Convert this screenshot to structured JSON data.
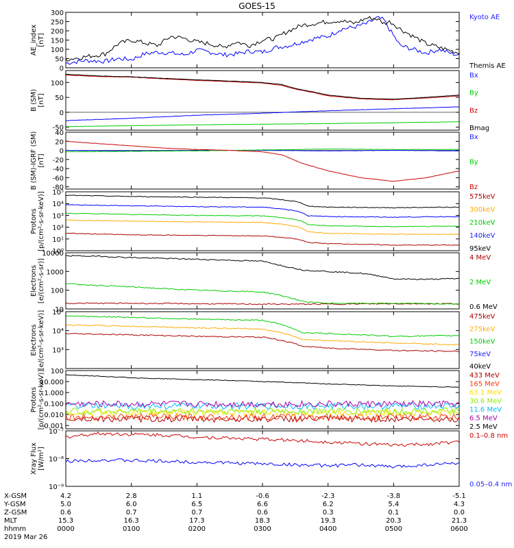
{
  "title": "GOES-15",
  "colors": {
    "black": "#000000",
    "blue": "#0000ff",
    "green": "#00cc00",
    "red": "#cc0000",
    "orange": "#ffaa00",
    "maroon": "#aa0000",
    "cyan": "#00bbff",
    "yellow": "#ffdd00",
    "lime": "#88ee00",
    "purple": "#aa00aa",
    "label_blue": "#2222ff"
  },
  "time_ticks": [
    "0000",
    "0100",
    "0200",
    "0300",
    "0400",
    "0500",
    "0600"
  ],
  "orbit_rows": [
    {
      "label": "X-GSM",
      "values": [
        "4.2",
        "2.8",
        "1.1",
        "-0.6",
        "-2.3",
        "-3.8",
        "-5.1"
      ]
    },
    {
      "label": "Y-GSM",
      "values": [
        "5.0",
        "6.0",
        "6.5",
        "6.6",
        "6.2",
        "5.4",
        "4.3"
      ]
    },
    {
      "label": "Z-GSM",
      "values": [
        "0.6",
        "0.7",
        "0.7",
        "0.6",
        "0.3",
        "0.1",
        "0.0"
      ]
    },
    {
      "label": "MLT",
      "values": [
        "15.3",
        "16.3",
        "17.3",
        "18.3",
        "19.3",
        "20.3",
        "21.3"
      ]
    },
    {
      "label": "hhmm",
      "values": [
        "0000",
        "0100",
        "0200",
        "0300",
        "0400",
        "0500",
        "0600"
      ]
    }
  ],
  "date_label": "2019 Mar 26",
  "chart_data": [
    {
      "type": "line",
      "ylabel": "AE_index\n[nT]",
      "ylim": [
        0,
        300
      ],
      "yticks": [
        0,
        50,
        100,
        150,
        200,
        250,
        300
      ],
      "ytick_labels": [
        "0",
        "50",
        "100",
        "150",
        "200",
        "250",
        "300"
      ],
      "x_hours": [
        0,
        6
      ],
      "series": [
        {
          "name": "Kyoto AE",
          "color": "#0000ff",
          "x": [
            0,
            0.3,
            0.6,
            0.8,
            1.0,
            1.2,
            1.4,
            1.6,
            1.8,
            2.0,
            2.2,
            2.4,
            2.6,
            2.8,
            3.0,
            3.2,
            3.4,
            3.6,
            3.8,
            4.0,
            4.2,
            4.4,
            4.6,
            4.75,
            4.85,
            4.95,
            5.1,
            5.3,
            5.5,
            5.7,
            5.9,
            6.0
          ],
          "values": [
            25,
            40,
            35,
            50,
            45,
            75,
            85,
            80,
            70,
            95,
            85,
            70,
            75,
            90,
            85,
            110,
            120,
            140,
            160,
            170,
            210,
            220,
            240,
            270,
            260,
            200,
            120,
            100,
            80,
            100,
            75,
            70
          ]
        },
        {
          "name": "Themis AE",
          "color": "#000000",
          "x": [
            0,
            0.3,
            0.6,
            0.8,
            1.0,
            1.2,
            1.4,
            1.6,
            1.8,
            2.0,
            2.2,
            2.4,
            2.6,
            2.8,
            3.0,
            3.2,
            3.4,
            3.6,
            3.8,
            4.0,
            4.2,
            4.4,
            4.6,
            4.75,
            4.85,
            4.95,
            5.1,
            5.3,
            5.5,
            5.7,
            5.9,
            6.0
          ],
          "values": [
            45,
            60,
            75,
            130,
            150,
            135,
            120,
            170,
            160,
            140,
            130,
            110,
            140,
            120,
            150,
            160,
            200,
            230,
            240,
            250,
            255,
            240,
            270,
            265,
            240,
            250,
            210,
            170,
            130,
            110,
            90,
            80
          ]
        }
      ]
    },
    {
      "type": "line",
      "ylabel": "B (SM)\n[nT]",
      "ylim": [
        -60,
        140
      ],
      "yticks": [
        -50,
        0,
        50,
        100
      ],
      "ytick_labels": [
        "-50",
        "0",
        "50",
        "100"
      ],
      "x_hours": [
        0,
        6
      ],
      "series": [
        {
          "name": "Bx",
          "color": "#0000ff",
          "x": [
            0,
            1,
            2,
            3,
            4,
            5,
            6
          ],
          "values": [
            -28,
            -20,
            -10,
            -3,
            5,
            12,
            18
          ]
        },
        {
          "name": "By",
          "color": "#00cc00",
          "x": [
            0,
            1,
            2,
            3,
            4,
            5,
            6
          ],
          "values": [
            -48,
            -45,
            -42,
            -40,
            -38,
            -35,
            -32
          ]
        },
        {
          "name": "Bz",
          "color": "#cc0000",
          "x": [
            0,
            0.5,
            1,
            1.5,
            2,
            2.5,
            3,
            3.3,
            3.5,
            3.8,
            4,
            4.5,
            5,
            5.5,
            6
          ],
          "values": [
            125,
            120,
            118,
            112,
            107,
            103,
            98,
            90,
            78,
            65,
            55,
            45,
            42,
            48,
            55
          ]
        },
        {
          "name": "Bmag",
          "color": "#000000",
          "x": [
            0,
            0.5,
            1,
            1.5,
            2,
            2.5,
            3,
            3.3,
            3.5,
            3.8,
            4,
            4.5,
            5,
            5.5,
            6
          ],
          "values": [
            128,
            122,
            119,
            114,
            109,
            105,
            100,
            93,
            80,
            67,
            58,
            47,
            44,
            50,
            58
          ]
        }
      ]
    },
    {
      "type": "line",
      "ylabel": "B (SM)-IGRF (SM)\n[nT]",
      "ylim": [
        -85,
        40
      ],
      "yticks": [
        -80,
        -60,
        -40,
        -20,
        0,
        20,
        40
      ],
      "ytick_labels": [
        "-80",
        "-60",
        "-40",
        "-20",
        "0",
        "20",
        "40"
      ],
      "x_hours": [
        0,
        6
      ],
      "series": [
        {
          "name": "Bx",
          "color": "#0000ff",
          "x": [
            0,
            1,
            2,
            3,
            4,
            5,
            6
          ],
          "values": [
            0,
            -1,
            0,
            0,
            -1,
            0,
            -1
          ]
        },
        {
          "name": "By",
          "color": "#00cc00",
          "x": [
            0,
            1,
            2,
            3,
            4,
            5,
            6
          ],
          "values": [
            -3,
            -2,
            -1,
            1,
            3,
            2,
            2
          ]
        },
        {
          "name": "Bz",
          "color": "#cc0000",
          "x": [
            0,
            0.5,
            1,
            1.5,
            2,
            2.5,
            3,
            3.3,
            3.6,
            4,
            4.5,
            5,
            5.5,
            6
          ],
          "values": [
            20,
            15,
            10,
            5,
            2,
            0,
            -3,
            -10,
            -28,
            -45,
            -60,
            -68,
            -60,
            -45
          ]
        }
      ]
    },
    {
      "type": "line",
      "ylabel": "Protons\n[p/(cm²-s-sr-keV)]",
      "yscale": "log",
      "ylim": [
        1,
        100000
      ],
      "yticks": [
        1,
        10,
        100,
        1000,
        10000,
        100000
      ],
      "ytick_labels": [
        "10⁰",
        "10¹",
        "10²",
        "10³",
        "10⁴",
        "10⁵"
      ],
      "x_hours": [
        0,
        6
      ],
      "series": [
        {
          "name": "575keV",
          "color": "#aa0000",
          "x": [
            0,
            1,
            2,
            3,
            3.5,
            3.7,
            4,
            5,
            6
          ],
          "values": [
            30,
            22,
            20,
            18,
            10,
            5,
            4,
            3,
            3
          ]
        },
        {
          "name": "300keV",
          "color": "#ffaa00",
          "x": [
            0,
            1,
            2,
            3,
            3.5,
            3.7,
            4,
            5,
            6
          ],
          "values": [
            400,
            320,
            280,
            250,
            120,
            40,
            30,
            25,
            25
          ]
        },
        {
          "name": "210keV",
          "color": "#00cc00",
          "x": [
            0,
            1,
            2,
            3,
            3.5,
            3.7,
            4,
            5,
            6
          ],
          "values": [
            1500,
            1200,
            1000,
            900,
            450,
            160,
            130,
            110,
            120
          ]
        },
        {
          "name": "140keV",
          "color": "#0000ff",
          "x": [
            0,
            1,
            2,
            3,
            3.5,
            3.7,
            4,
            5,
            6
          ],
          "values": [
            8000,
            6500,
            5500,
            5000,
            2500,
            900,
            800,
            700,
            800
          ]
        },
        {
          "name": "95keV",
          "color": "#000000",
          "x": [
            0,
            1,
            2,
            3,
            3.5,
            3.7,
            4,
            5,
            6
          ],
          "values": [
            50000,
            40000,
            35000,
            30000,
            15000,
            6000,
            5000,
            4500,
            5000
          ]
        }
      ]
    },
    {
      "type": "line",
      "ylabel": "Electrons\n[e/(cm²-s-sr)]",
      "yscale": "log",
      "ylim": [
        10,
        10000
      ],
      "yticks": [
        10,
        100,
        1000,
        10000
      ],
      "ytick_labels": [
        "10",
        "100",
        "1000",
        "10000"
      ],
      "x_hours": [
        0,
        6
      ],
      "series": [
        {
          "name": "4 MeV",
          "color": "#aa0000",
          "x": [
            0,
            1,
            2,
            3,
            4,
            5,
            6
          ],
          "values": [
            20,
            20,
            19,
            18,
            18,
            19,
            19
          ]
        },
        {
          "name": "2 MeV",
          "color": "#00cc00",
          "x": [
            0,
            0.5,
            1,
            1.5,
            2,
            2.5,
            3,
            3.3,
            3.6,
            4,
            5,
            6
          ],
          "values": [
            220,
            180,
            150,
            120,
            100,
            90,
            80,
            50,
            25,
            20,
            20,
            18
          ]
        },
        {
          "name": "0.6 MeV",
          "color": "#000000",
          "x": [
            0,
            0.5,
            1,
            1.5,
            2,
            2.5,
            3,
            3.3,
            3.6,
            4,
            4.5,
            5,
            5.5,
            6
          ],
          "values": [
            7000,
            6500,
            5500,
            5000,
            4500,
            4000,
            3500,
            2000,
            1200,
            1000,
            800,
            400,
            380,
            420
          ]
        }
      ]
    },
    {
      "type": "line",
      "ylabel": "Electrons\n[e/(cm²-s-sr-keV)]",
      "yscale": "log",
      "ylim": [
        100,
        100000
      ],
      "yticks": [
        1000,
        10000,
        100000
      ],
      "ytick_labels": [
        "10³",
        "10⁴",
        "10⁵"
      ],
      "x_hours": [
        0,
        6
      ],
      "series": [
        {
          "name": "475keV",
          "color": "#aa0000",
          "x": [
            0,
            1,
            2,
            3,
            3.4,
            3.6,
            4,
            5,
            6
          ],
          "values": [
            7000,
            6000,
            5000,
            4500,
            2500,
            1500,
            1200,
            900,
            800
          ]
        },
        {
          "name": "275keV",
          "color": "#ffaa00",
          "x": [
            0,
            1,
            2,
            3,
            3.4,
            3.6,
            4,
            5,
            6
          ],
          "values": [
            20000,
            17000,
            14000,
            12000,
            6000,
            3500,
            3000,
            2200,
            1800
          ]
        },
        {
          "name": "150keV",
          "color": "#00cc00",
          "x": [
            0,
            1,
            2,
            3,
            3.4,
            3.6,
            4,
            5,
            6
          ],
          "values": [
            60000,
            50000,
            40000,
            35000,
            15000,
            8000,
            7000,
            5000,
            5500
          ]
        },
        {
          "name": "75keV",
          "color": "#0000ff"
        },
        {
          "name": "40keV",
          "color": "#000000"
        }
      ]
    },
    {
      "type": "line",
      "ylabel": "Protons\n[p/(cm²-s-sr-keV)]",
      "yscale": "log",
      "ylim": [
        0.0005,
        100
      ],
      "yticks": [
        0.001,
        0.01,
        0.1,
        1,
        10,
        100
      ],
      "ytick_labels": [
        "0.001",
        "0.010",
        "0.100",
        "1.000",
        "10.000",
        "100"
      ],
      "x_hours": [
        0,
        6
      ],
      "series": [
        {
          "name": "433 MeV",
          "color": "#aa0000",
          "x": [
            0,
            2,
            4,
            6
          ],
          "values": [
            0.004,
            0.004,
            0.004,
            0.004
          ]
        },
        {
          "name": "165 MeV",
          "color": "#ff3300",
          "x": [
            0,
            2,
            4,
            6
          ],
          "values": [
            0.006,
            0.006,
            0.006,
            0.006
          ]
        },
        {
          "name": "63.1 MeV",
          "color": "#ffdd00",
          "x": [
            0,
            2,
            4,
            6
          ],
          "values": [
            0.015,
            0.015,
            0.015,
            0.015
          ]
        },
        {
          "name": "30.6 MeV",
          "color": "#88ee00",
          "x": [
            0,
            2,
            4,
            6
          ],
          "values": [
            0.02,
            0.02,
            0.02,
            0.02
          ]
        },
        {
          "name": "11.6 MeV",
          "color": "#00bbff",
          "x": [
            0,
            2,
            4,
            6
          ],
          "values": [
            0.06,
            0.06,
            0.06,
            0.06
          ]
        },
        {
          "name": "6.5 MeV",
          "color": "#aa00aa",
          "x": [
            0,
            2,
            4,
            6
          ],
          "values": [
            0.09,
            0.09,
            0.09,
            0.09
          ]
        },
        {
          "name": "2.5 MeV",
          "color": "#000000",
          "x": [
            0,
            1,
            2,
            3,
            4,
            5,
            6
          ],
          "values": [
            40,
            22,
            15,
            10,
            6,
            4,
            3
          ]
        }
      ]
    },
    {
      "type": "line",
      "ylabel": "Xray Flux\n[W/m²]",
      "yscale": "log",
      "ylim": [
        1e-09,
        1e-07
      ],
      "yticks": [
        1e-09,
        1e-08,
        1e-07
      ],
      "ytick_labels": [
        "10⁻⁹",
        "10⁻⁸",
        "10⁻⁷"
      ],
      "x_hours": [
        0,
        6
      ],
      "series": [
        {
          "name": "0.1–0.8 nm",
          "color": "#cc0000",
          "x": [
            0,
            0.5,
            1,
            1.5,
            2,
            2.5,
            3,
            3.5,
            4,
            4.5,
            5,
            5.5,
            6
          ],
          "values": [
            6e-08,
            8e-08,
            7.5e-08,
            7e-08,
            6e-08,
            5.5e-08,
            5e-08,
            4.5e-08,
            4e-08,
            3.5e-08,
            3e-08,
            3.3e-08,
            4e-08
          ]
        },
        {
          "name": "0.05–0.4 nm",
          "color": "#0000ff",
          "x": [
            0,
            0.5,
            1,
            1.5,
            2,
            2.5,
            3,
            3.5,
            4,
            4.5,
            5,
            5.5,
            6
          ],
          "values": [
            8e-09,
            9e-09,
            8.5e-09,
            8e-09,
            7.5e-09,
            7e-09,
            6.5e-09,
            6e-09,
            5.5e-09,
            6e-09,
            5e-09,
            6e-09,
            7e-09
          ]
        }
      ]
    }
  ]
}
